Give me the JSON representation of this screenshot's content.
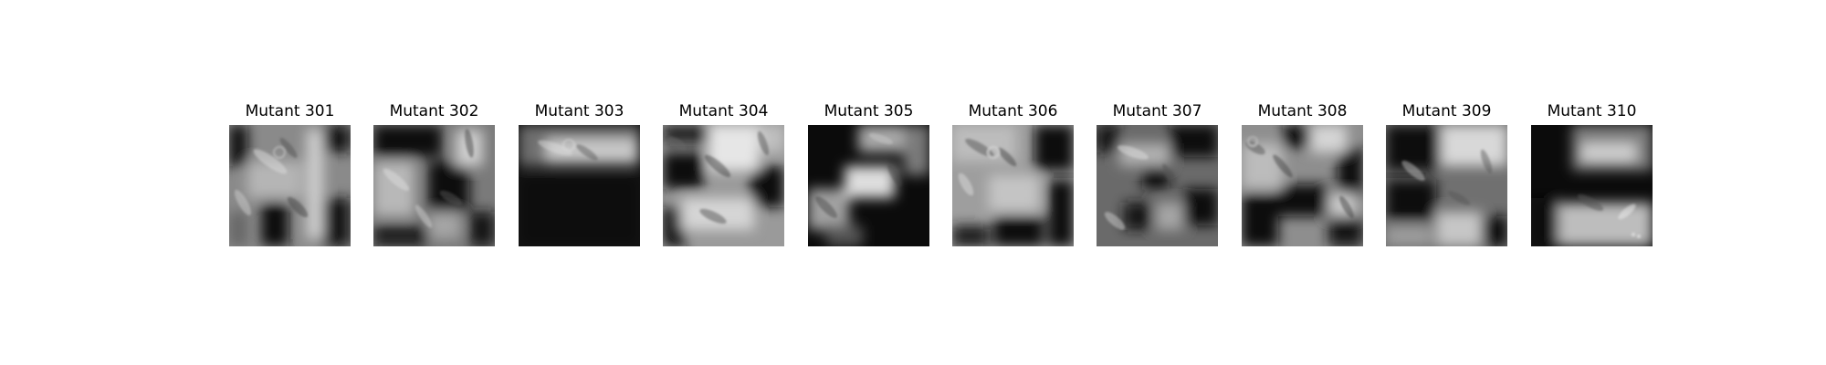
{
  "figure": {
    "panels": [
      {
        "title": "Mutant 301",
        "alt": "Grayscale microscopy image with blocky dark regions overlaid on elongated cell shapes"
      },
      {
        "title": "Mutant 302",
        "alt": "Grayscale microscopy image with blocky dark regions overlaid on elongated cell shapes"
      },
      {
        "title": "Mutant 303",
        "alt": "Grayscale microscopy image with blocky dark regions overlaid on elongated cell shapes"
      },
      {
        "title": "Mutant 304",
        "alt": "Grayscale microscopy image with blocky dark regions overlaid on elongated cell shapes"
      },
      {
        "title": "Mutant 305",
        "alt": "Grayscale microscopy image with blocky dark regions overlaid on elongated cell shapes"
      },
      {
        "title": "Mutant 306",
        "alt": "Grayscale microscopy image with blocky dark regions overlaid on elongated cell shapes"
      },
      {
        "title": "Mutant 307",
        "alt": "Grayscale microscopy image with blocky dark regions overlaid on elongated cell shapes"
      },
      {
        "title": "Mutant 308",
        "alt": "Grayscale microscopy image with blocky dark regions overlaid on elongated cell shapes"
      },
      {
        "title": "Mutant 309",
        "alt": "Grayscale microscopy image with blocky dark regions overlaid on elongated cell shapes"
      },
      {
        "title": "Mutant 310",
        "alt": "Grayscale microscopy image with blocky dark regions overlaid on elongated cell shapes"
      }
    ]
  }
}
